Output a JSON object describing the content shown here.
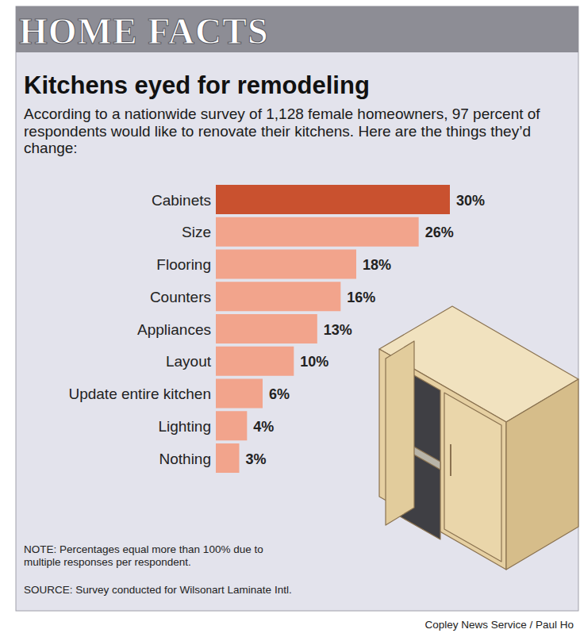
{
  "chart_data": {
    "type": "bar",
    "orientation": "horizontal",
    "header": "HOME FACTS",
    "title": "Kitchens eyed for remodeling",
    "subtitle": "According to a nationwide survey of 1,128 female homeowners, 97 percent of respondents would like to renovate their kitchens. Here are the things they’d change:",
    "categories": [
      "Cabinets",
      "Size",
      "Flooring",
      "Counters",
      "Appliances",
      "Layout",
      "Update entire kitchen",
      "Lighting",
      "Nothing"
    ],
    "values": [
      30,
      26,
      18,
      16,
      13,
      10,
      6,
      4,
      3
    ],
    "value_labels": [
      "30%",
      "26%",
      "18%",
      "16%",
      "13%",
      "10%",
      "6%",
      "4%",
      "3%"
    ],
    "colors": [
      "#c9512f",
      "#f2a48c",
      "#f2a48c",
      "#f2a48c",
      "#f2a48c",
      "#f2a48c",
      "#f2a48c",
      "#f2a48c",
      "#f2a48c"
    ],
    "xlim": [
      0,
      30
    ],
    "data_labels": true,
    "tick_labels": false,
    "note": "NOTE: Percentages equal more than 100% due to multiple responses per respondent.",
    "source": "SOURCE: Survey conducted for Wilsonart Laminate Intl.",
    "credit": "Copley News Service / Paul Ho"
  }
}
